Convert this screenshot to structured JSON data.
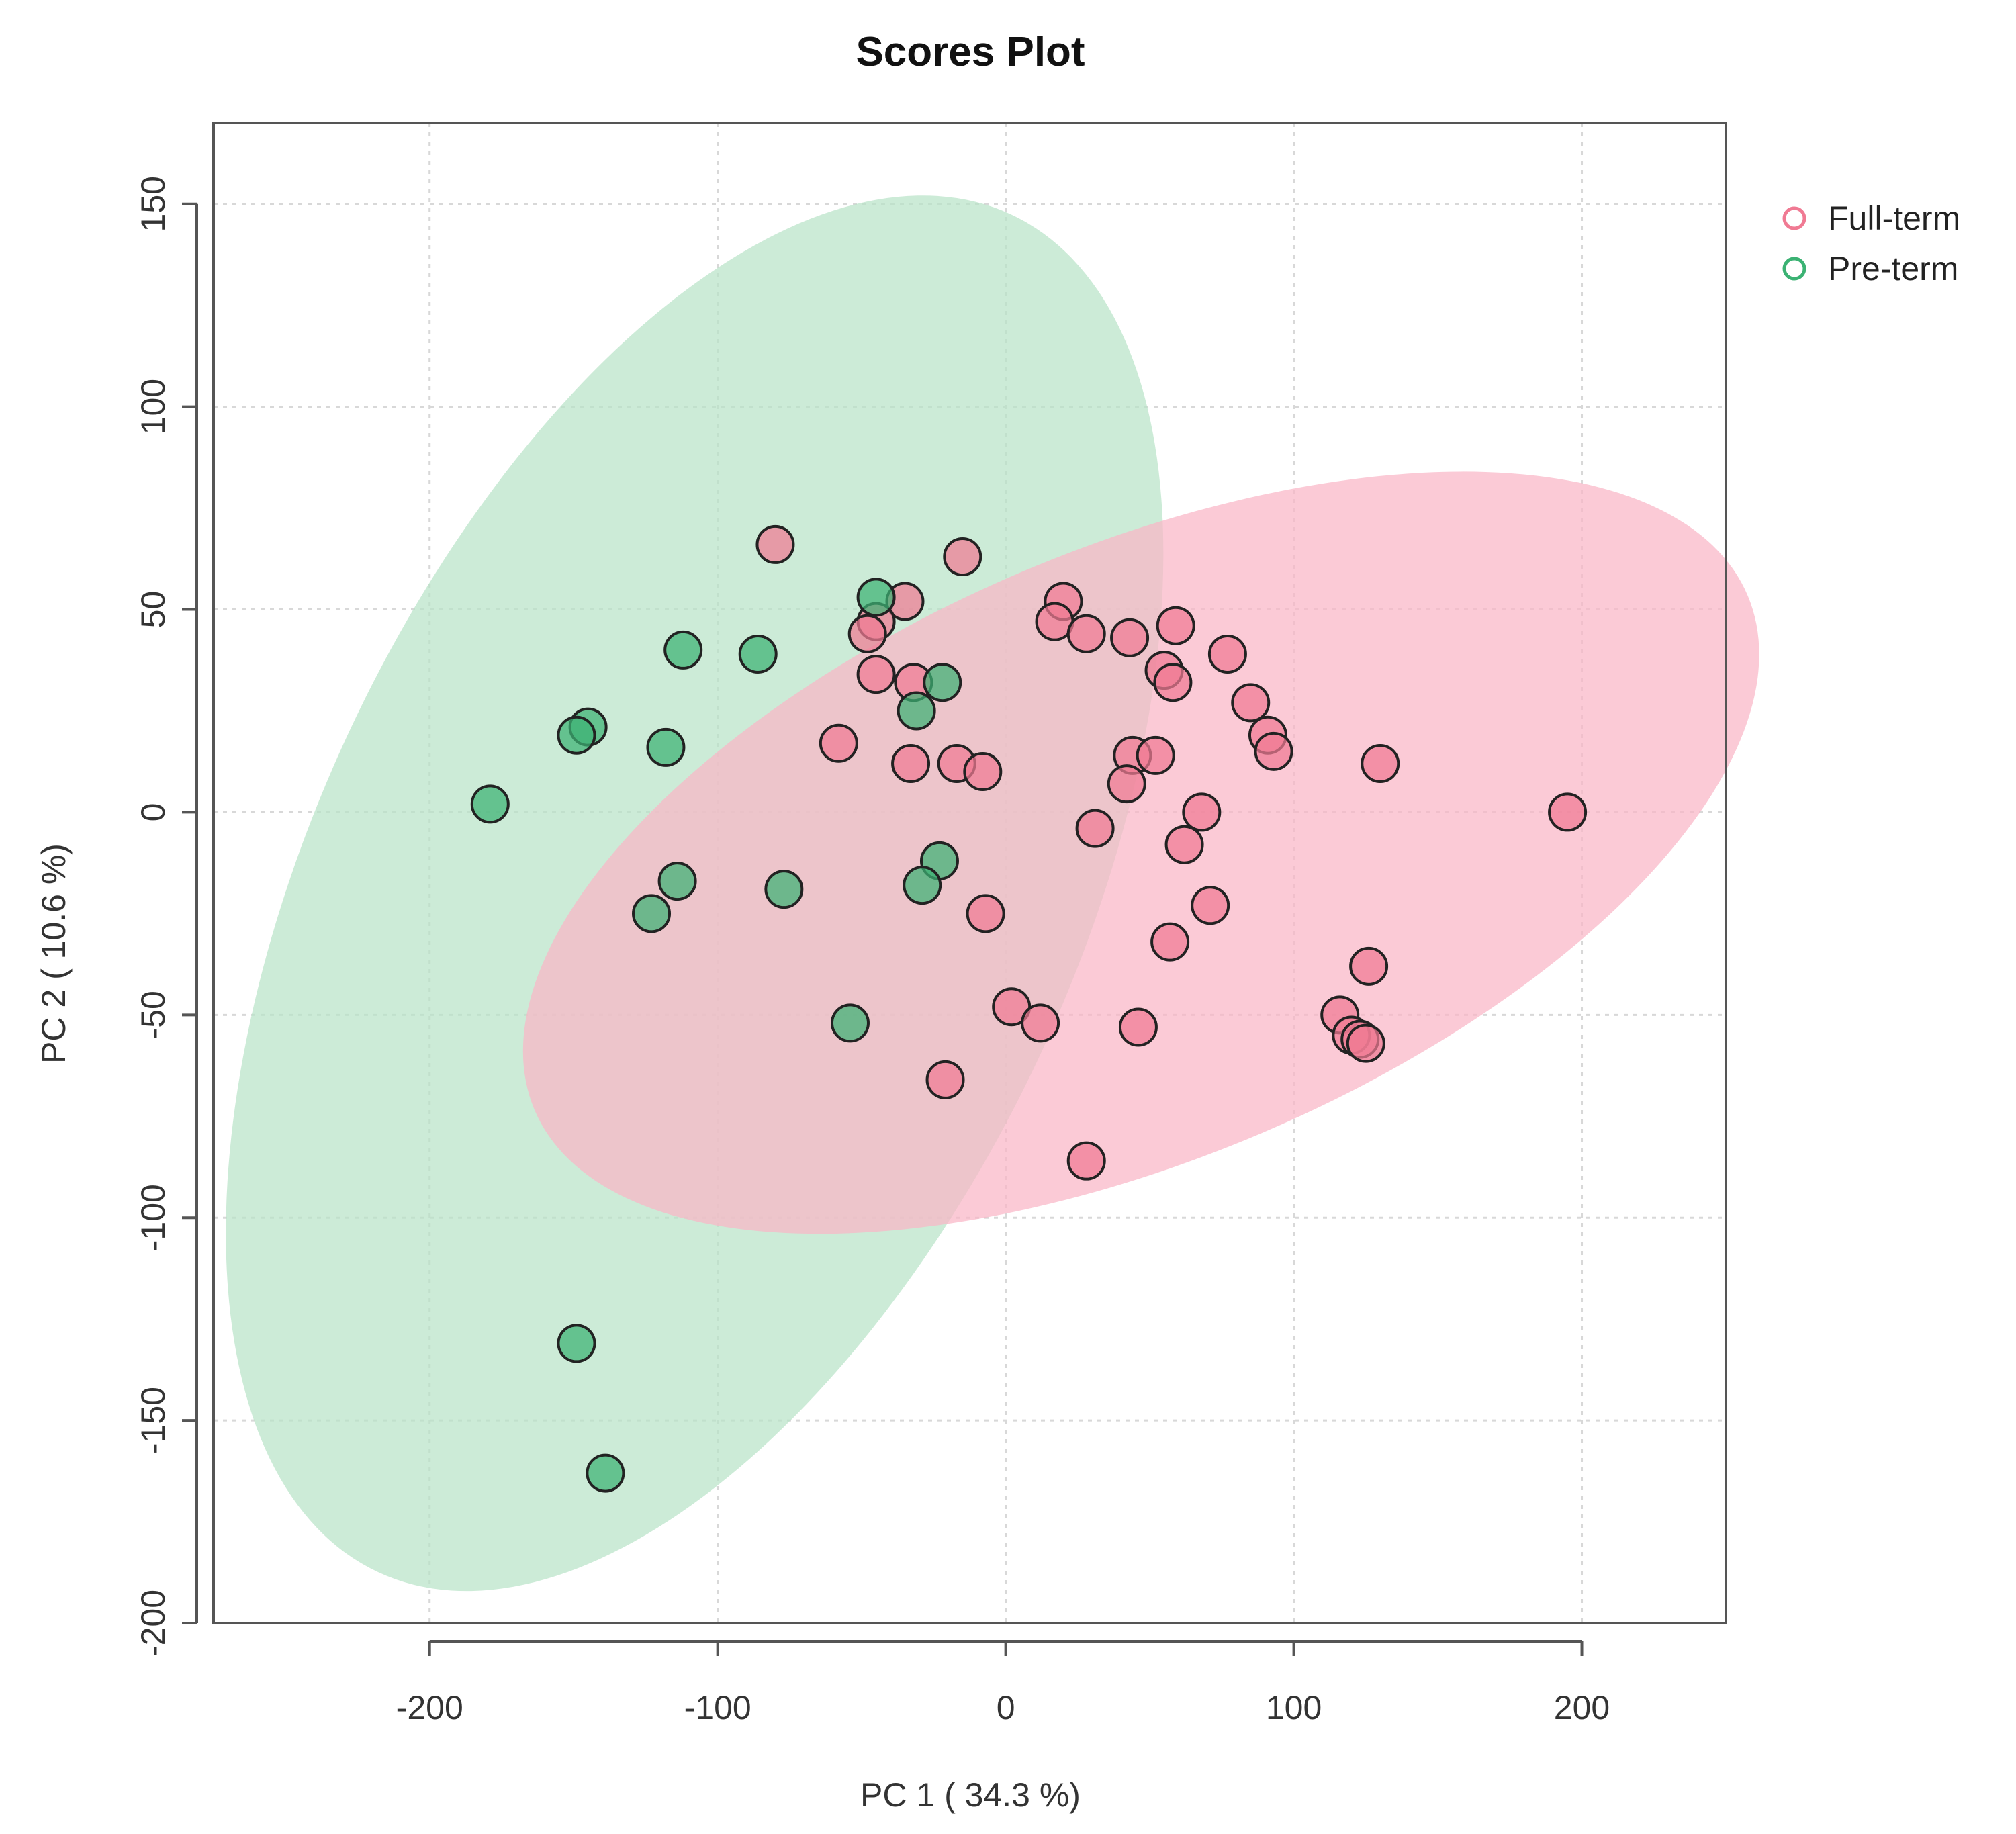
{
  "chart_data": {
    "type": "scatter",
    "title": "Scores Plot",
    "xlabel": "PC 1 ( 34.3 %)",
    "ylabel": "PC 2 ( 10.6 %)",
    "xlim": [
      -275,
      250
    ],
    "ylim": [
      -200,
      170
    ],
    "xticks": [
      -200,
      -100,
      0,
      100,
      200
    ],
    "yticks": [
      -200,
      -150,
      -100,
      -50,
      0,
      50,
      100,
      150
    ],
    "xtick_labels": [
      "-200",
      "-100",
      "0",
      "100",
      "200"
    ],
    "ytick_labels": [
      "-200",
      "-150",
      "-100",
      "-50",
      "0",
      "50",
      "100",
      "150"
    ],
    "grid": true,
    "legend_position": "top-right",
    "series": [
      {
        "name": "Full-term",
        "color": "#f07a93",
        "ellipse": {
          "center": [
            47,
            -10
          ],
          "rx": 190,
          "ry": 88,
          "angle_deg": -23,
          "fill": "#f9b6c6"
        },
        "points": [
          [
            -80,
            66
          ],
          [
            -15,
            63
          ],
          [
            -35,
            52
          ],
          [
            -45,
            47
          ],
          [
            -48,
            44
          ],
          [
            -45,
            34
          ],
          [
            -32,
            32
          ],
          [
            20,
            52
          ],
          [
            17,
            47
          ],
          [
            28,
            44
          ],
          [
            43,
            43
          ],
          [
            59,
            46
          ],
          [
            55,
            35
          ],
          [
            58,
            32
          ],
          [
            77,
            39
          ],
          [
            85,
            27
          ],
          [
            91,
            19
          ],
          [
            93,
            15
          ],
          [
            130,
            12
          ],
          [
            -58,
            17
          ],
          [
            -33,
            12
          ],
          [
            -17,
            12
          ],
          [
            -8,
            10
          ],
          [
            44,
            14
          ],
          [
            52,
            14
          ],
          [
            42,
            7
          ],
          [
            68,
            0
          ],
          [
            195,
            0
          ],
          [
            31,
            -4
          ],
          [
            62,
            -8
          ],
          [
            71,
            -23
          ],
          [
            -7,
            -25
          ],
          [
            57,
            -32
          ],
          [
            126,
            -38
          ],
          [
            2,
            -48
          ],
          [
            12,
            -52
          ],
          [
            46,
            -53
          ],
          [
            116,
            -50
          ],
          [
            120,
            -55
          ],
          [
            123,
            -56
          ],
          [
            125,
            -57
          ],
          [
            -21,
            -66
          ],
          [
            28,
            -86
          ]
        ]
      },
      {
        "name": "Pre-term",
        "color": "#3bb273",
        "ellipse": {
          "center": [
            -108,
            -20
          ],
          "rx": 216,
          "ry": 110,
          "angle_deg": -65,
          "fill": "#b9e3c7"
        },
        "points": [
          [
            -45,
            53
          ],
          [
            -112,
            40
          ],
          [
            -86,
            39
          ],
          [
            -22,
            32
          ],
          [
            -31,
            25
          ],
          [
            -145,
            21
          ],
          [
            -149,
            19
          ],
          [
            -118,
            16
          ],
          [
            -179,
            2
          ],
          [
            -23,
            -12
          ],
          [
            -29,
            -18
          ],
          [
            -114,
            -17
          ],
          [
            -77,
            -19
          ],
          [
            -123,
            -25
          ],
          [
            -54,
            -52
          ],
          [
            -149,
            -131
          ],
          [
            -139,
            -163
          ]
        ]
      }
    ]
  }
}
